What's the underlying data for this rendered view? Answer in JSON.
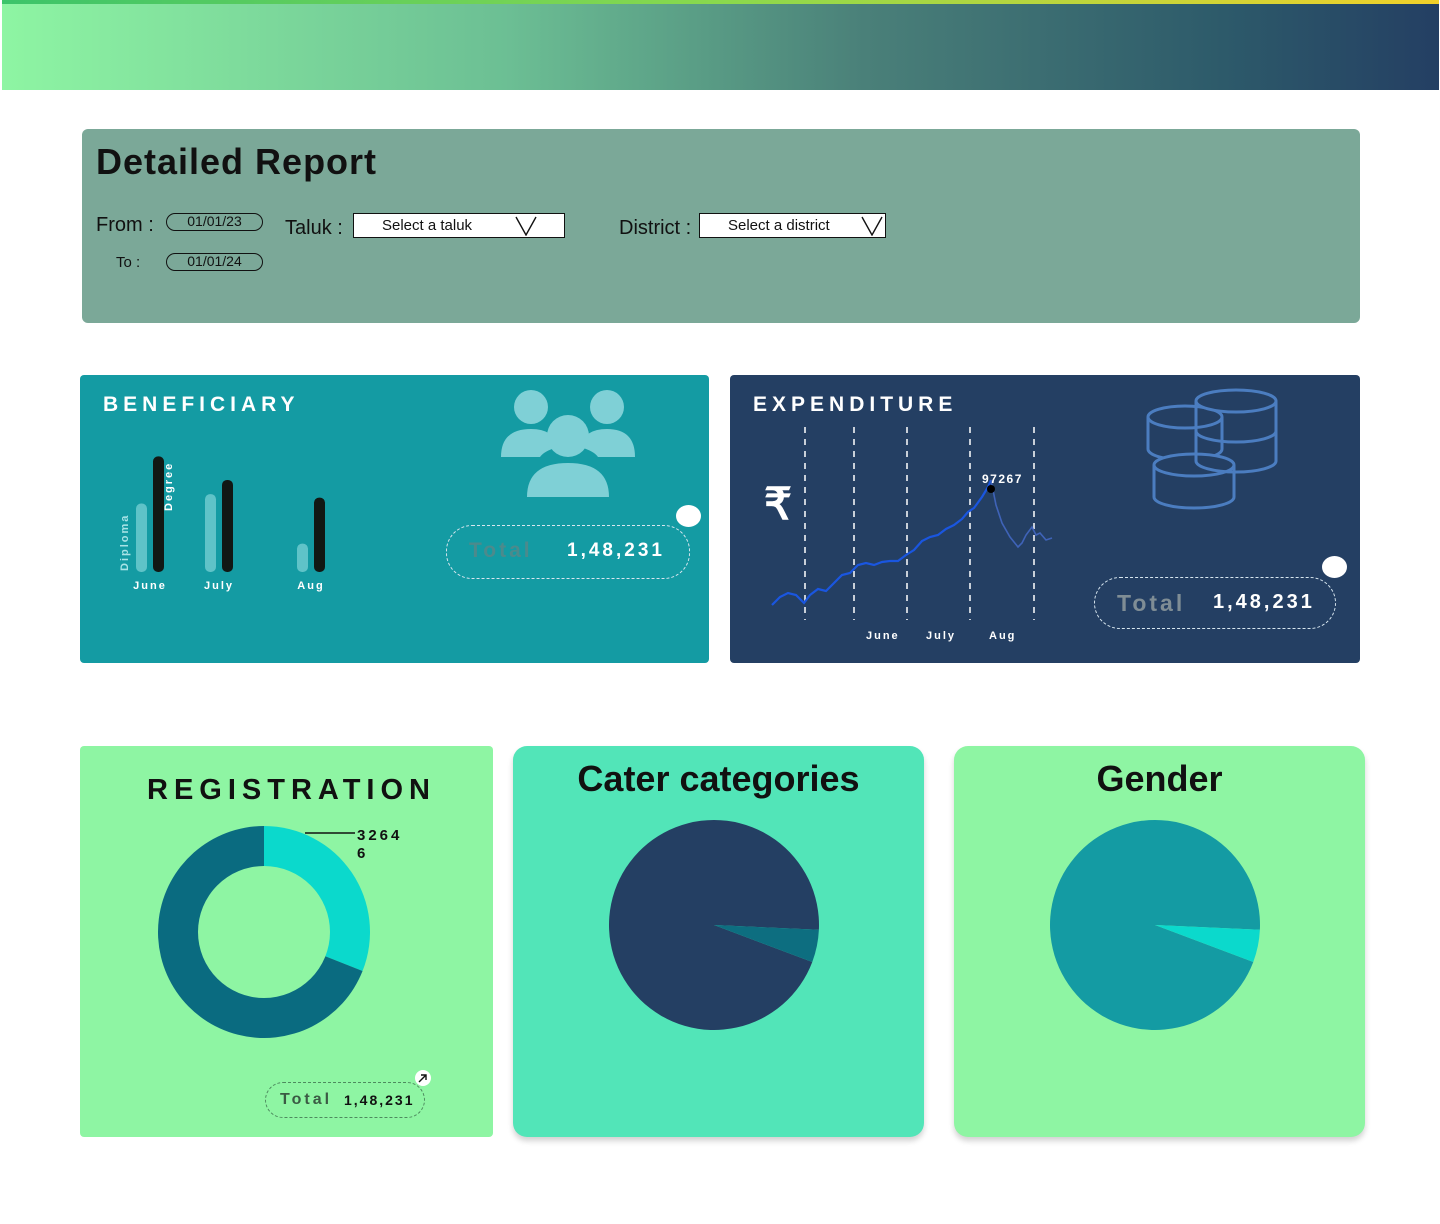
{
  "report": {
    "title": "Detailed Report"
  },
  "filters": {
    "from_label": "From :",
    "from_value": "01/01/23",
    "to_label": "To :",
    "to_value": "01/01/24",
    "taluk_label": "Taluk :",
    "taluk_value": "Select a taluk",
    "district_label": "District :",
    "district_value": "Select a district"
  },
  "beneficiary": {
    "title": "BENEFICIARY",
    "icon": "users-group-icon",
    "total_label": "Total",
    "total_value": "1,48,231",
    "series_labels": [
      "Diploma",
      "Degree"
    ],
    "chart_data": {
      "type": "bar",
      "categories": [
        "June",
        "July",
        "Aug"
      ],
      "series": [
        {
          "name": "Diploma",
          "values": [
            0.58,
            0.66,
            0.24
          ]
        },
        {
          "name": "Degree",
          "values": [
            0.98,
            0.78,
            0.63
          ]
        }
      ],
      "value_scale": "fraction of tallest bar",
      "colors": {
        "Diploma": "#5fc3c8",
        "Degree": "#111814"
      }
    }
  },
  "expenditure": {
    "title": "EXPENDITURE",
    "currency_symbol": "₹",
    "icon": "coins-stack-icon",
    "total_label": "Total",
    "total_value": "1,48,231",
    "peak_label": "97267",
    "chart_data": {
      "type": "line",
      "x_labels": [
        "June",
        "July",
        "Aug"
      ],
      "annotations": [
        "97267"
      ],
      "line_color": "#1a56e0",
      "gridlines": "vertical dashed"
    }
  },
  "registration": {
    "title": "REGISTRATION",
    "callout_value": "32646",
    "callout_lines": [
      "3264",
      "6"
    ],
    "total_label": "Total",
    "total_value": "1,48,231",
    "expand_icon": "arrow-up-right-icon",
    "chart_data": {
      "type": "pie",
      "style": "donut",
      "slices": [
        {
          "value": 0.31,
          "color": "#0bd9cc"
        },
        {
          "value": 0.69,
          "color": "#0a6b80"
        }
      ]
    }
  },
  "cater": {
    "title": "Cater categories",
    "chart_data": {
      "type": "pie",
      "slices": [
        {
          "value": 0.95,
          "color": "#243f63"
        },
        {
          "value": 0.05,
          "color": "#0d6e80"
        }
      ]
    }
  },
  "gender": {
    "title": "Gender",
    "chart_data": {
      "type": "pie",
      "slices": [
        {
          "value": 0.95,
          "color": "#149ba3"
        },
        {
          "value": 0.05,
          "color": "#0bd9cc"
        }
      ]
    }
  }
}
